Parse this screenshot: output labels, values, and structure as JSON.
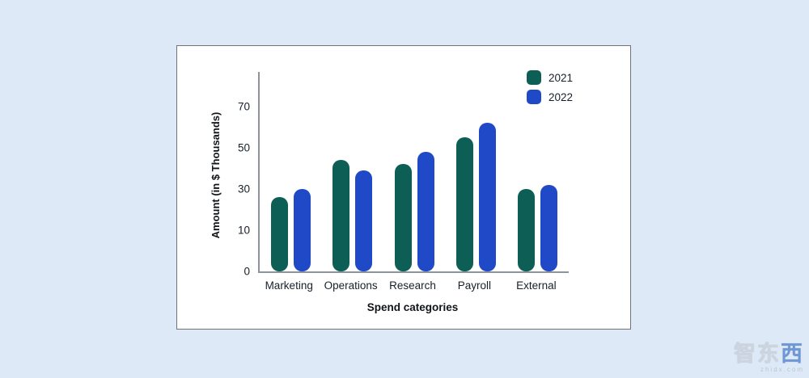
{
  "chart_data": {
    "type": "bar",
    "title": "",
    "categories": [
      "Marketing",
      "Operations",
      "Research",
      "Payroll",
      "External"
    ],
    "series": [
      {
        "name": "2021",
        "color": "#0d5f55",
        "values": [
          26,
          44,
          42,
          55,
          30
        ]
      },
      {
        "name": "2022",
        "color": "#1f49c7",
        "values": [
          30,
          39,
          48,
          62,
          32
        ]
      }
    ],
    "xlabel": "Spend categories",
    "ylabel": "Amount (in $ Thousands)",
    "yticks": [
      0,
      10,
      30,
      50,
      70
    ],
    "ylim": [
      0,
      70
    ],
    "grid": false,
    "legend_position": "top-right"
  },
  "watermark": {
    "text_main": "智东",
    "text_accent": "西",
    "subtext": "zhidx.com"
  }
}
